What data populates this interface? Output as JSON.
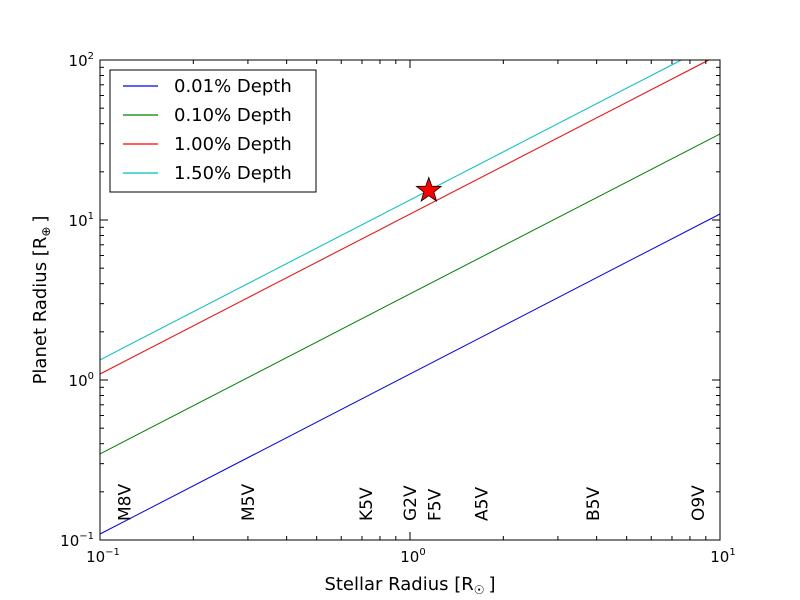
{
  "chart_data": {
    "type": "line",
    "xlabel": "Stellar Radius [R",
    "xlabel_sub": "☉",
    "xlabel_close": "]",
    "ylabel": "Planet Radius [R",
    "ylabel_sub": "⊕",
    "ylabel_close": "]",
    "xscale": "log",
    "yscale": "log",
    "xlim": [
      0.1,
      10
    ],
    "ylim": [
      0.1,
      100
    ],
    "xticks": [
      {
        "value": 0.1,
        "base": "10",
        "exp": "−1"
      },
      {
        "value": 1,
        "base": "10",
        "exp": "0"
      },
      {
        "value": 10,
        "base": "10",
        "exp": "1"
      }
    ],
    "yticks": [
      {
        "value": 0.1,
        "base": "10",
        "exp": "−1"
      },
      {
        "value": 1,
        "base": "10",
        "exp": "0"
      },
      {
        "value": 10,
        "base": "10",
        "exp": "1"
      },
      {
        "value": 100,
        "base": "10",
        "exp": "2"
      }
    ],
    "grid": false,
    "legend_position": "top-left",
    "series": [
      {
        "name": "0.01% Depth",
        "color": "#0000ff",
        "x": [
          0.1,
          10
        ],
        "y": [
          0.109,
          10.9
        ]
      },
      {
        "name": "0.10% Depth",
        "color": "#008000",
        "x": [
          0.1,
          10
        ],
        "y": [
          0.345,
          34.5
        ]
      },
      {
        "name": "1.00% Depth",
        "color": "#ff0000",
        "x": [
          0.1,
          9.2
        ],
        "y": [
          1.09,
          100
        ]
      },
      {
        "name": "1.50% Depth",
        "color": "#00bfbf",
        "x": [
          0.1,
          7.5
        ],
        "y": [
          1.336,
          100
        ]
      }
    ],
    "marker": {
      "shape": "star",
      "color": "#ff0000",
      "x": 1.15,
      "y": 15.3
    },
    "spectral_types": [
      {
        "label": "M8V",
        "x": 0.12
      },
      {
        "label": "M5V",
        "x": 0.3
      },
      {
        "label": "K5V",
        "x": 0.72
      },
      {
        "label": "G2V",
        "x": 1.0
      },
      {
        "label": "F5V",
        "x": 1.2
      },
      {
        "label": "A5V",
        "x": 1.7
      },
      {
        "label": "B5V",
        "x": 3.9
      },
      {
        "label": "O9V",
        "x": 8.5
      }
    ]
  }
}
